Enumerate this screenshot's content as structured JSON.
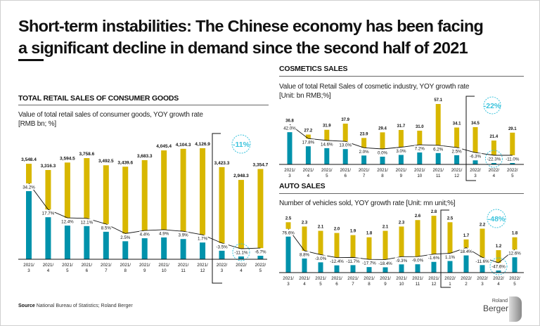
{
  "title": {
    "line1": "Short-term instabilities: The Chinese economy has been facing",
    "line2": "a significant decline in demand since the second half of 2021"
  },
  "sections": {
    "retail": {
      "heading": "TOTAL RETAIL SALES OF CONSUMER GOODS",
      "subtitle1": "Value of total retail sales of consumer goods, YOY growth rate",
      "subtitle2": "[RMB bn; %]"
    },
    "cosmetics": {
      "heading": "COSMETICS SALES",
      "subtitle1": "Value of total Retail Sales of cosmetic industry, YOY growth rate",
      "subtitle2": "[Unit: bn RMB;%]"
    },
    "auto": {
      "heading": "AUTO SALES",
      "subtitle1": "Number of vehicles sold, YOY growth rate [Unit: mn unit;%]"
    }
  },
  "footer": {
    "source_label": "Source",
    "source_text": "National Bureau of Statistics; Roland Berger"
  },
  "logo": {
    "line1": "Roland",
    "line2": "Berger"
  },
  "colors": {
    "value_bar": "#d8b700",
    "growth_bar": "#0092ab",
    "callout": "#39c3dc",
    "line": "#111111"
  },
  "chart_data": [
    {
      "type": "bar+line",
      "categories": [
        "2021/3",
        "2021/4",
        "2021/5",
        "2021/6",
        "2021/7",
        "2021/8",
        "2021/9",
        "2021/10",
        "2021/11",
        "2021/12",
        "2022/3",
        "2022/4",
        "2022/5"
      ],
      "series": [
        {
          "type": "bar",
          "unit": "RMB bn",
          "values": [
            3548.4,
            3316.3,
            3594.5,
            3758.6,
            3492.5,
            3439.6,
            3683.3,
            4045.4,
            4104.3,
            4126.9,
            3423.3,
            2948.3,
            3354.7
          ]
        },
        {
          "type": "bar+line",
          "unit": "%",
          "values": [
            34.2,
            17.7,
            12.4,
            12.1,
            8.5,
            2.5,
            4.4,
            4.9,
            3.9,
            1.7,
            -3.5,
            -11.1,
            -6.7
          ]
        }
      ],
      "callout": "-11%"
    },
    {
      "type": "bar+line",
      "categories": [
        "2021/3",
        "2021/4",
        "2021/5",
        "2021/6",
        "2021/7",
        "2021/8",
        "2021/9",
        "2021/10",
        "2021/11",
        "2021/12",
        "2022/3",
        "2022/4",
        "2022/5"
      ],
      "series": [
        {
          "type": "bar",
          "unit": "bn RMB",
          "values": [
            36.8,
            27.2,
            31.9,
            37.9,
            23.9,
            29.4,
            31.7,
            31.0,
            57.1,
            34.1,
            34.5,
            21.4,
            29.1
          ]
        },
        {
          "type": "bar+line",
          "unit": "%",
          "values": [
            42.0,
            17.8,
            14.6,
            13.0,
            2.0,
            0.0,
            3.0,
            7.2,
            6.2,
            2.5,
            -6.3,
            -22.3,
            -11.0
          ]
        }
      ],
      "callout": "-22%"
    },
    {
      "type": "bar+line",
      "categories": [
        "2021/3",
        "2021/4",
        "2021/5",
        "2021/6",
        "2021/7",
        "2021/8",
        "2021/9",
        "2021/10",
        "2021/11",
        "2021/12",
        "2022/1",
        "2022/2",
        "2022/3",
        "2022/4",
        "2022/5"
      ],
      "series": [
        {
          "type": "bar",
          "unit": "mn unit",
          "values": [
            2.5,
            2.3,
            2.1,
            2.0,
            1.9,
            1.8,
            2.1,
            2.3,
            2.6,
            2.8,
            2.5,
            1.7,
            2.2,
            1.2,
            1.8
          ]
        },
        {
          "type": "bar+line",
          "unit": "%",
          "values": [
            76.6,
            8.8,
            -3.0,
            -12.4,
            -11.7,
            -17.7,
            -18.4,
            -9.3,
            -9.0,
            -1.6,
            1.1,
            18.4,
            -11.6,
            -47.6,
            12.6
          ]
        }
      ],
      "callout": "-48%"
    }
  ]
}
